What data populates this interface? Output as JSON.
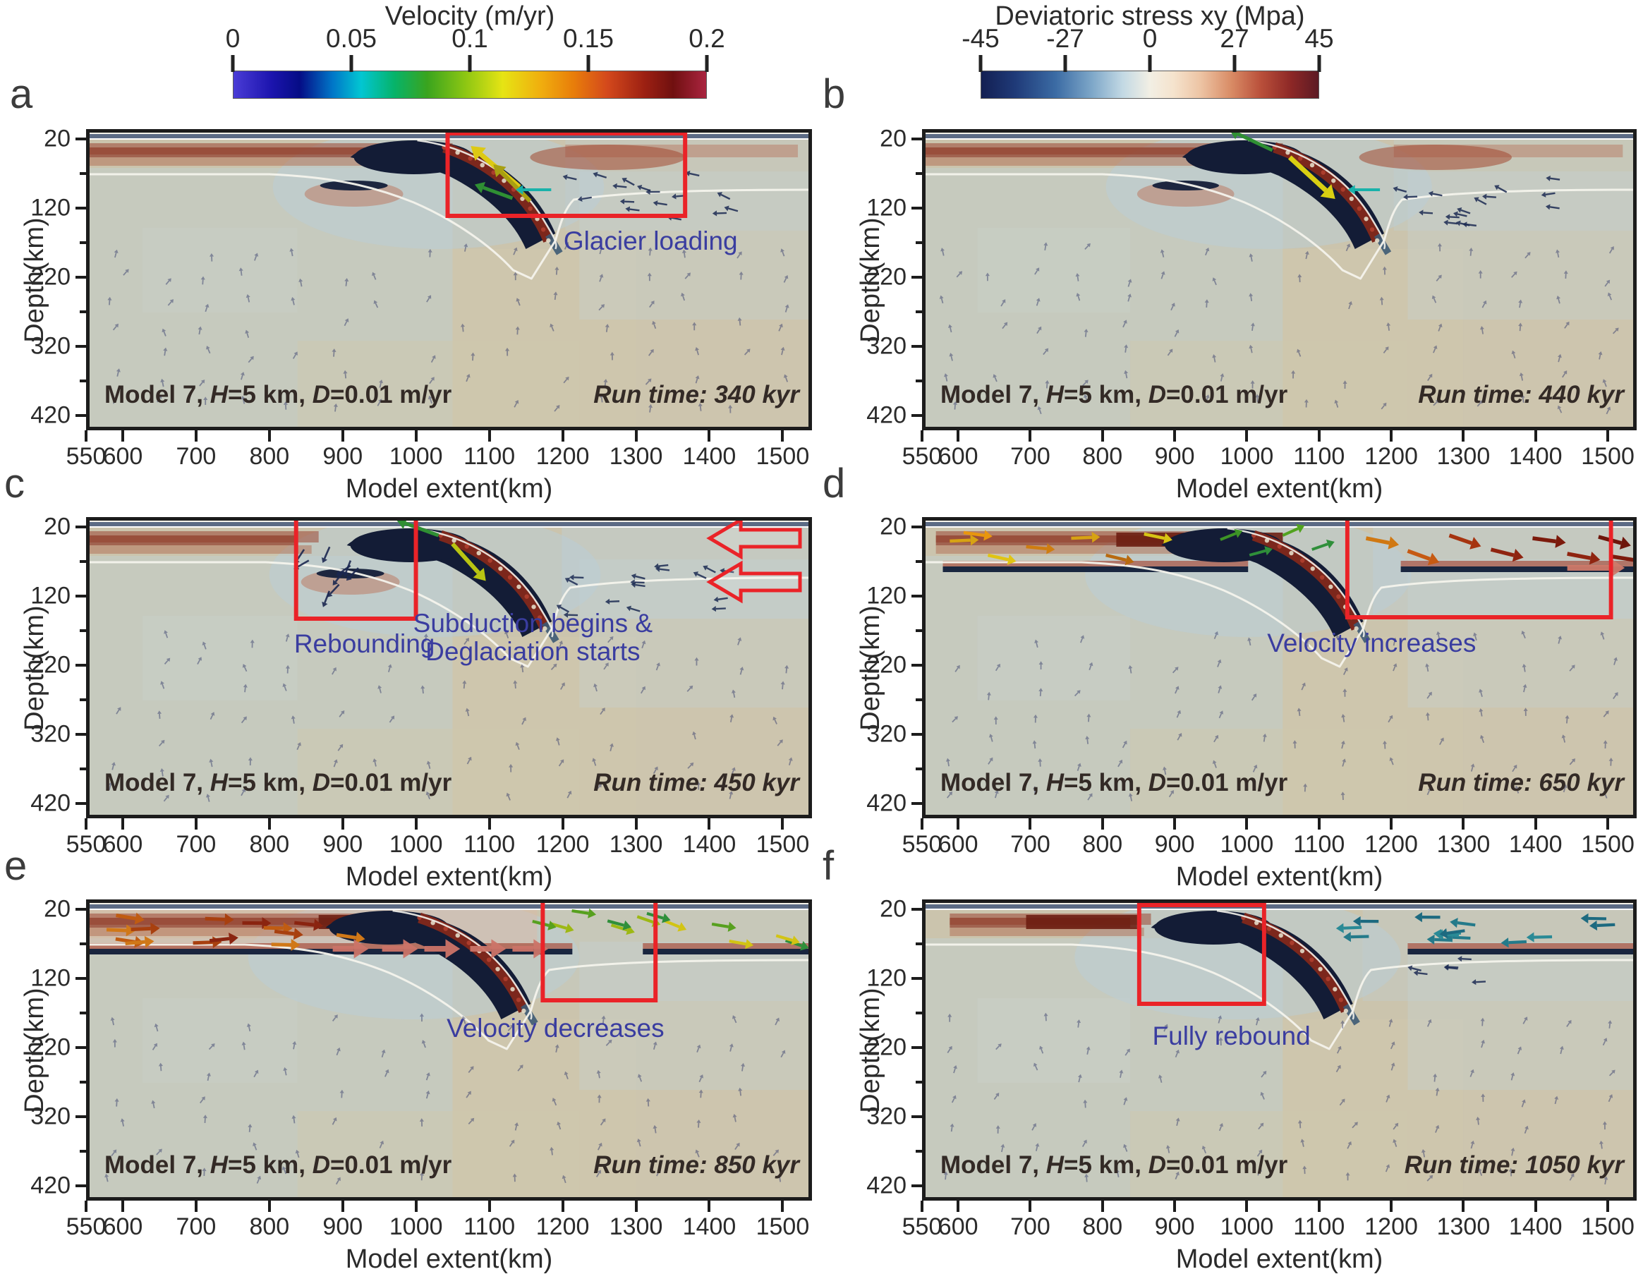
{
  "figure": {
    "colorbars": [
      {
        "id": "velocity",
        "title": "Velocity (m/yr)",
        "tick_labels": [
          "0",
          "0.05",
          "0.1",
          "0.15",
          "0.2"
        ],
        "range": [
          0,
          0.2
        ],
        "unit": "m/yr",
        "style": "rainbow"
      },
      {
        "id": "stress",
        "title": "Deviatoric stress xy (Mpa)",
        "tick_labels": [
          "-45",
          "-27",
          "0",
          "27",
          "45"
        ],
        "range": [
          -45,
          45
        ],
        "unit": "Mpa",
        "style": "blue-white-red"
      }
    ],
    "axes": {
      "xlabel": "Model extent(km)",
      "ylabel": "Depth(km)",
      "x_tick_labels": [
        "550",
        "600",
        "700",
        "800",
        "900",
        "1000",
        "1100",
        "1200",
        "1300",
        "1400",
        "1500"
      ],
      "y_tick_labels": [
        "20",
        "120",
        "220",
        "320",
        "420"
      ]
    },
    "panels": [
      {
        "letter": "a",
        "model_text": {
          "prefix": "Model 7, ",
          "h_var": "H",
          "h_rest": "=5 km, ",
          "d_var": "D",
          "d_rest": "=0.01 m/yr"
        },
        "run_time": "Run time: 340 kyr",
        "annotations": [
          {
            "kind": "box-label",
            "lines": [
              "Glacier loading"
            ]
          }
        ]
      },
      {
        "letter": "b",
        "model_text": {
          "prefix": "Model 7, ",
          "h_var": "H",
          "h_rest": "=5 km, ",
          "d_var": "D",
          "d_rest": "=0.01 m/yr"
        },
        "run_time": "Run time: 440 kyr",
        "annotations": []
      },
      {
        "letter": "c",
        "model_text": {
          "prefix": "Model 7, ",
          "h_var": "H",
          "h_rest": "=5 km, ",
          "d_var": "D",
          "d_rest": "=0.01 m/yr"
        },
        "run_time": "Run time: 450 kyr",
        "annotations": [
          {
            "kind": "box-label",
            "lines": [
              "Rebounding"
            ]
          },
          {
            "kind": "label",
            "lines": [
              "Subduction begins &",
              "Deglaciation starts"
            ]
          },
          {
            "kind": "outline-arrows-left",
            "count": 2,
            "lines": []
          }
        ]
      },
      {
        "letter": "d",
        "model_text": {
          "prefix": "Model 7, ",
          "h_var": "H",
          "h_rest": "=5 km, ",
          "d_var": "D",
          "d_rest": "=0.01 m/yr"
        },
        "run_time": "Run time: 650 kyr",
        "annotations": [
          {
            "kind": "box-label",
            "lines": [
              "Velocity increases"
            ]
          }
        ]
      },
      {
        "letter": "e",
        "model_text": {
          "prefix": "Model 7, ",
          "h_var": "H",
          "h_rest": "=5 km, ",
          "d_var": "D",
          "d_rest": "=0.01 m/yr"
        },
        "run_time": "Run time: 850 kyr",
        "annotations": [
          {
            "kind": "box-label",
            "lines": [
              "Velocity decreases"
            ]
          }
        ]
      },
      {
        "letter": "f",
        "model_text": {
          "prefix": "Model 7, ",
          "h_var": "H",
          "h_rest": "=5 km, ",
          "d_var": "D",
          "d_rest": "=0.01 m/yr"
        },
        "run_time": "Run time: 1050 kyr",
        "annotations": [
          {
            "kind": "box-label",
            "lines": [
              "Fully rebound"
            ]
          }
        ]
      }
    ],
    "colors": {
      "annotation_blue": "#3a3da0",
      "highlight_red": "#ea2328",
      "axis_dark": "#1c1c1c"
    }
  },
  "chart_data": {
    "type": "heatmap",
    "layout": "6 panels (a-f) in 2 columns: time evolution of a 2-D subduction model under glacier loading/deglaciation",
    "colorbars": [
      {
        "label": "Velocity (m/yr)",
        "ticks": [
          0,
          0.05,
          0.1,
          0.15,
          0.2
        ],
        "range": [
          0,
          0.2
        ],
        "applies_to": "velocity arrows"
      },
      {
        "label": "Deviatoric stress xy (Mpa)",
        "ticks": [
          -45,
          -27,
          0,
          27,
          45
        ],
        "range": [
          -45,
          45
        ],
        "applies_to": "background field"
      }
    ],
    "x": {
      "label": "Model extent(km)",
      "range": [
        550,
        1540
      ],
      "ticks": [
        550,
        600,
        700,
        800,
        900,
        1000,
        1100,
        1200,
        1300,
        1400,
        1500
      ]
    },
    "y": {
      "label": "Depth(km)",
      "range": [
        0,
        435
      ],
      "ticks": [
        20,
        120,
        220,
        320,
        420
      ],
      "inverted": true
    },
    "panels": [
      {
        "panel": "a",
        "run_time_kyr": 340,
        "model": "Model 7",
        "H_km": 5,
        "D_m_per_yr": 0.01,
        "annotations": [
          "Glacier loading"
        ]
      },
      {
        "panel": "b",
        "run_time_kyr": 440,
        "model": "Model 7",
        "H_km": 5,
        "D_m_per_yr": 0.01,
        "annotations": []
      },
      {
        "panel": "c",
        "run_time_kyr": 450,
        "model": "Model 7",
        "H_km": 5,
        "D_m_per_yr": 0.01,
        "annotations": [
          "Rebounding",
          "Subduction begins & Deglaciation starts"
        ]
      },
      {
        "panel": "d",
        "run_time_kyr": 650,
        "model": "Model 7",
        "H_km": 5,
        "D_m_per_yr": 0.01,
        "annotations": [
          "Velocity increases"
        ]
      },
      {
        "panel": "e",
        "run_time_kyr": 850,
        "model": "Model 7",
        "H_km": 5,
        "D_m_per_yr": 0.01,
        "annotations": [
          "Velocity decreases"
        ]
      },
      {
        "panel": "f",
        "run_time_kyr": 1050,
        "model": "Model 7",
        "H_km": 5,
        "D_m_per_yr": 0.01,
        "annotations": [
          "Fully rebound"
        ]
      }
    ]
  }
}
